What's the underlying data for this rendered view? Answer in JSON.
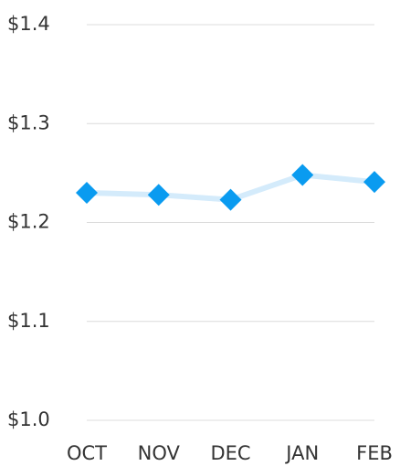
{
  "chart_data": {
    "type": "line",
    "categories": [
      "OCT",
      "NOV",
      "DEC",
      "JAN",
      "FEB"
    ],
    "values": [
      1.23,
      1.228,
      1.223,
      1.248,
      1.241
    ],
    "line_color": "#d4ebfb",
    "marker_color": "#0a9bf0",
    "ylim": [
      1.0,
      1.4
    ],
    "yticks": [
      {
        "value": 1.0,
        "label": "$1.0"
      },
      {
        "value": 1.1,
        "label": "$1.1"
      },
      {
        "value": 1.2,
        "label": "$1.2"
      },
      {
        "value": 1.3,
        "label": "$1.3"
      },
      {
        "value": 1.4,
        "label": "$1.4"
      }
    ],
    "grid": true
  }
}
